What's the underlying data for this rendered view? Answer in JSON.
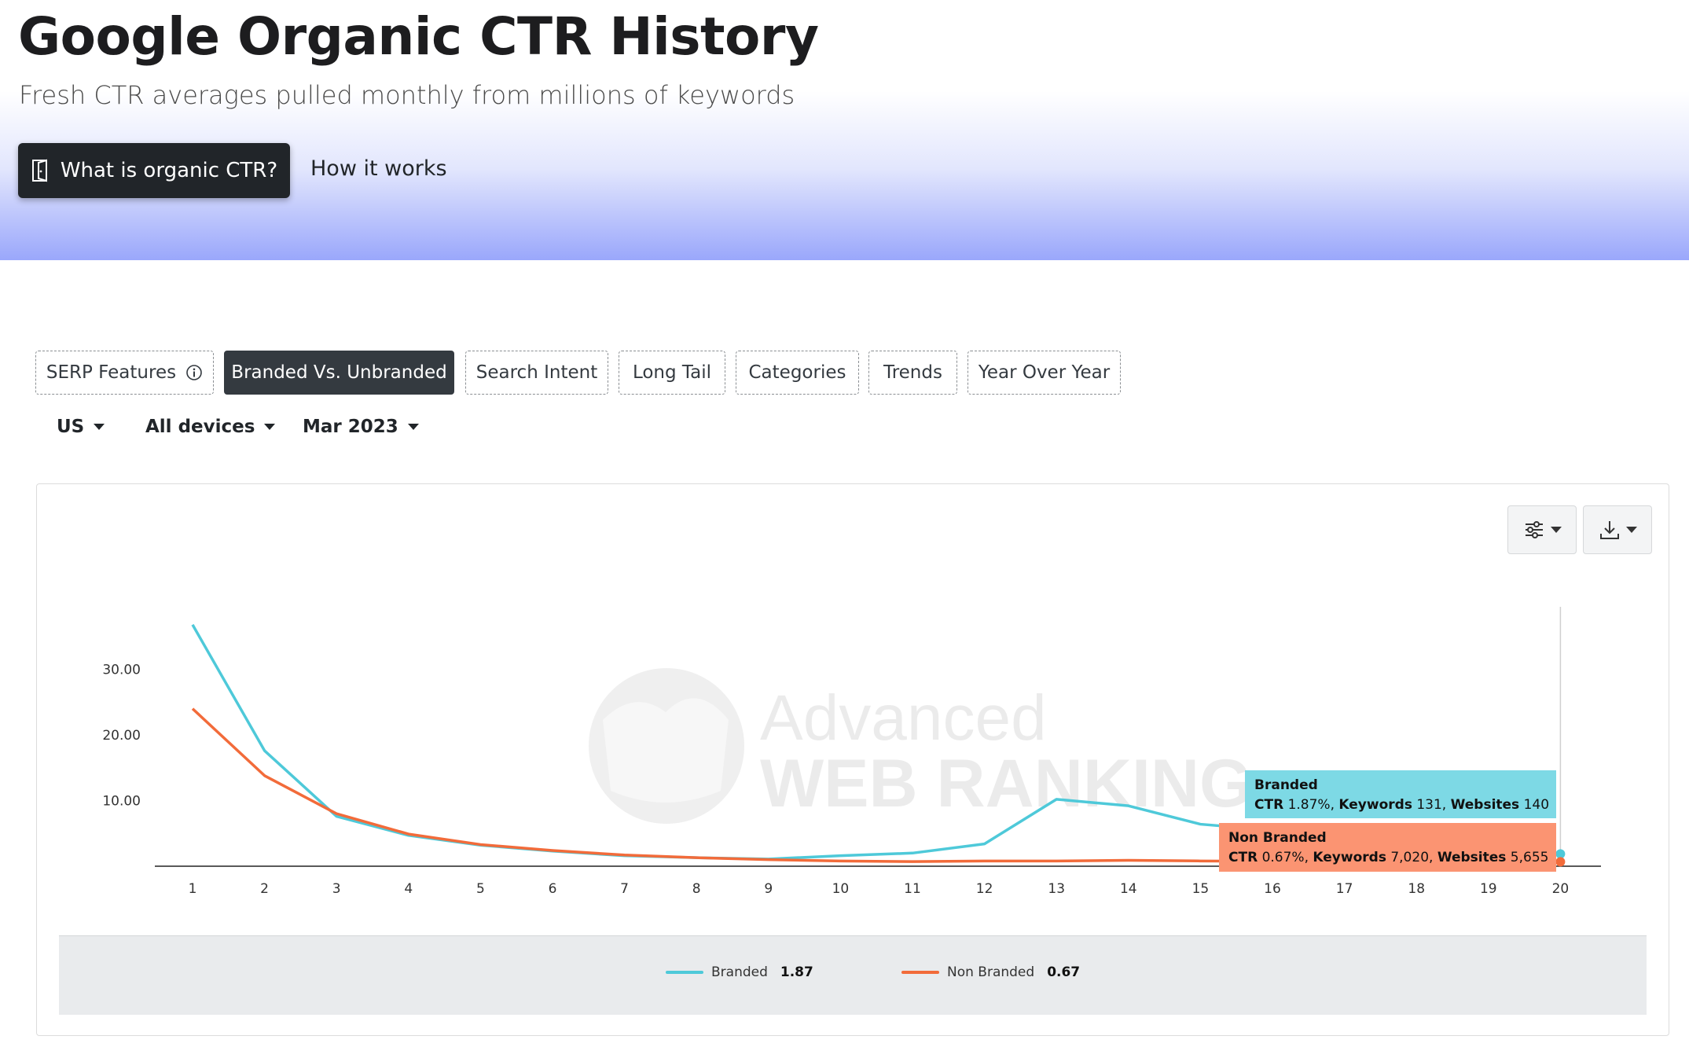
{
  "hero": {
    "title": "Google Organic CTR History",
    "subtitle": "Fresh CTR averages pulled monthly from millions of keywords",
    "primary_button": "What is organic CTR?",
    "primary_button_icon": "door-icon",
    "secondary_link": "How it works"
  },
  "tabs": [
    {
      "label": "SERP Features",
      "icon": "info-icon",
      "active": false
    },
    {
      "label": "Branded Vs. Unbranded",
      "active": true
    },
    {
      "label": "Search Intent",
      "active": false
    },
    {
      "label": "Long Tail",
      "active": false
    },
    {
      "label": "Categories",
      "active": false
    },
    {
      "label": "Trends",
      "active": false
    },
    {
      "label": "Year Over Year",
      "active": false
    }
  ],
  "filters": {
    "country": "US",
    "device": "All devices",
    "date": "Mar 2023"
  },
  "toolbar": {
    "settings_icon": "sliders-icon",
    "download_icon": "download-icon"
  },
  "watermark": {
    "line1": "Advanced",
    "line2": "WEB RANKING"
  },
  "colors": {
    "branded": "#4ec9d9",
    "non_branded": "#f26b3a",
    "tooltip_branded_bg": "#7dd9e5",
    "tooltip_non_branded_bg": "#fb9472"
  },
  "chart_data": {
    "type": "line",
    "x": [
      1,
      2,
      3,
      4,
      5,
      6,
      7,
      8,
      9,
      10,
      11,
      12,
      13,
      14,
      15,
      16,
      17,
      18,
      19,
      20
    ],
    "yticks": [
      "10.00",
      "20.00",
      "30.00"
    ],
    "ylim": [
      0,
      37
    ],
    "grid": false,
    "series": [
      {
        "name": "Branded",
        "color": "#4ec9d9",
        "values": [
          36.8,
          17.6,
          7.6,
          4.7,
          3.2,
          2.3,
          1.6,
          1.3,
          1.1,
          1.6,
          2.0,
          3.4,
          10.2,
          9.2,
          6.4,
          5.5,
          3.8,
          2.6,
          2.1,
          1.87
        ]
      },
      {
        "name": "Non Branded",
        "color": "#f26b3a",
        "values": [
          24.0,
          13.8,
          8.0,
          4.9,
          3.3,
          2.4,
          1.7,
          1.3,
          1.0,
          0.8,
          0.7,
          0.8,
          0.8,
          0.9,
          0.8,
          0.75,
          0.7,
          0.7,
          0.68,
          0.67
        ]
      }
    ],
    "legend": {
      "placement": "bottom",
      "items": [
        {
          "name": "Branded",
          "value": "1.87"
        },
        {
          "name": "Non Branded",
          "value": "0.67"
        }
      ]
    },
    "tooltip": {
      "x": 20,
      "branded": {
        "title": "Branded",
        "ctr_label": "CTR",
        "ctr": "1.87%",
        "kw_label": "Keywords",
        "keywords": "131",
        "ws_label": "Websites",
        "websites": "140"
      },
      "non_branded": {
        "title": "Non Branded",
        "ctr_label": "CTR",
        "ctr": "0.67%",
        "kw_label": "Keywords",
        "keywords": "7,020",
        "ws_label": "Websites",
        "websites": "5,655"
      }
    }
  }
}
